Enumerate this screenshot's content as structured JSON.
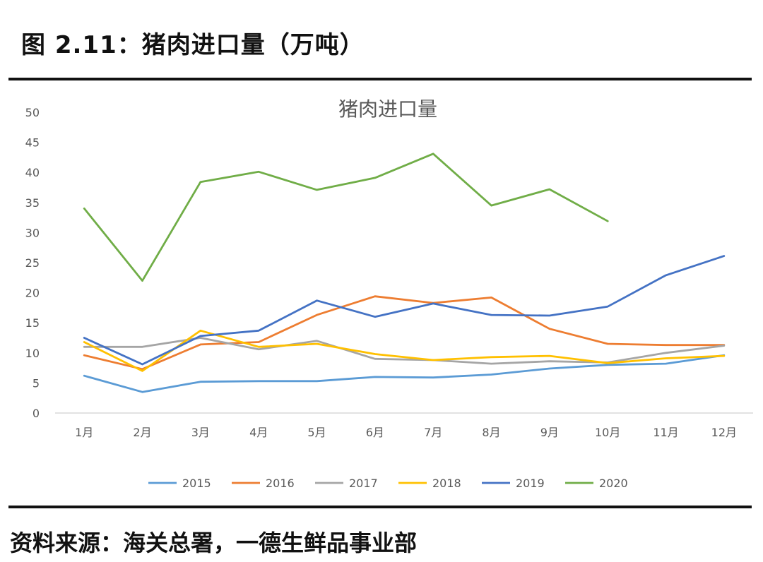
{
  "header": {
    "figure_title": "图 2.11：猪肉进口量（万吨）"
  },
  "footer": {
    "source": "资料来源：海关总署，一德生鲜品事业部"
  },
  "chart_data": {
    "type": "line",
    "title": "猪肉进口量",
    "xlabel": "",
    "ylabel": "",
    "ylim": [
      0,
      50
    ],
    "yticks": [
      0,
      5,
      10,
      15,
      20,
      25,
      30,
      35,
      40,
      45,
      50
    ],
    "grid": false,
    "legend_position": "bottom",
    "categories": [
      "1月",
      "2月",
      "3月",
      "4月",
      "5月",
      "6月",
      "7月",
      "8月",
      "9月",
      "10月",
      "11月",
      "12月"
    ],
    "series": [
      {
        "name": "2015",
        "color": "#5B9BD5",
        "values": [
          6.2,
          3.5,
          5.2,
          5.3,
          5.3,
          6.0,
          5.9,
          6.4,
          7.4,
          8.0,
          8.2,
          9.6
        ]
      },
      {
        "name": "2016",
        "color": "#ED7D31",
        "values": [
          9.6,
          7.3,
          11.4,
          11.8,
          16.3,
          19.4,
          18.3,
          19.2,
          14.0,
          11.5,
          11.3,
          11.3
        ]
      },
      {
        "name": "2017",
        "color": "#A5A5A5",
        "values": [
          11.0,
          11.0,
          12.5,
          10.6,
          12.0,
          9.0,
          8.8,
          8.2,
          8.6,
          8.4,
          10.0,
          11.2
        ]
      },
      {
        "name": "2018",
        "color": "#FFC000",
        "values": [
          11.8,
          7.0,
          13.7,
          11.0,
          11.5,
          9.8,
          8.8,
          9.3,
          9.5,
          8.3,
          9.1,
          9.5
        ]
      },
      {
        "name": "2019",
        "color": "#4472C4",
        "values": [
          12.5,
          8.1,
          12.8,
          13.7,
          18.7,
          16.0,
          18.2,
          16.3,
          16.2,
          17.7,
          22.9,
          26.1
        ]
      },
      {
        "name": "2020",
        "color": "#70AD47",
        "values": [
          34.0,
          22.0,
          38.4,
          40.1,
          37.1,
          39.1,
          43.1,
          34.5,
          37.2,
          31.9,
          null,
          null
        ]
      }
    ]
  }
}
